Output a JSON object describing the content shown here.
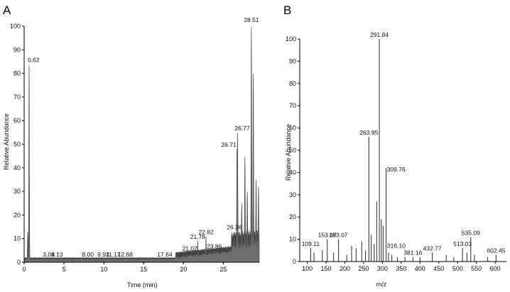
{
  "chart_data": [
    {
      "type": "line",
      "panel_label": "A",
      "xlabel": "Time (min)",
      "ylabel": "Relative Abundance",
      "xlim": [
        0,
        29.5
      ],
      "ylim": [
        0,
        100
      ],
      "x_ticks": [
        "0",
        "5",
        "10",
        "15",
        "20",
        "25"
      ],
      "y_ticks": [
        "0",
        "10",
        "20",
        "30",
        "40",
        "50",
        "60",
        "70",
        "80",
        "90",
        "100"
      ],
      "grid": false,
      "peaks": [
        {
          "label": "0.62",
          "x": 0.62,
          "y": 84
        },
        {
          "label": "3.08",
          "x": 3.08,
          "y": 1.5
        },
        {
          "label": "4.13",
          "x": 4.13,
          "y": 1.5
        },
        {
          "label": "8.00",
          "x": 8.0,
          "y": 1.5
        },
        {
          "label": "9.93",
          "x": 9.93,
          "y": 1.5
        },
        {
          "label": "11.17",
          "x": 11.17,
          "y": 1.5
        },
        {
          "label": "12.68",
          "x": 12.68,
          "y": 1.5
        },
        {
          "label": "17.64",
          "x": 17.64,
          "y": 1.5
        },
        {
          "label": "21.02",
          "x": 21.02,
          "y": 4
        },
        {
          "label": "21.78",
          "x": 21.78,
          "y": 9
        },
        {
          "label": "22.82",
          "x": 22.82,
          "y": 11
        },
        {
          "label": "23.86",
          "x": 23.86,
          "y": 5
        },
        {
          "label": "26.36",
          "x": 26.36,
          "y": 13
        },
        {
          "label": "26.71",
          "x": 26.71,
          "y": 48
        },
        {
          "label": "26.77",
          "x": 26.77,
          "y": 55
        },
        {
          "label": "28.51",
          "x": 28.51,
          "y": 100
        }
      ],
      "unlabeled_peaks": [
        {
          "x": 0.45,
          "y": 13
        },
        {
          "x": 27.3,
          "y": 25
        },
        {
          "x": 27.7,
          "y": 45
        },
        {
          "x": 28.0,
          "y": 30
        },
        {
          "x": 28.75,
          "y": 80
        },
        {
          "x": 29.1,
          "y": 35
        },
        {
          "x": 29.4,
          "y": 32
        }
      ]
    },
    {
      "type": "bar",
      "panel_label": "B",
      "xlabel": "m/z",
      "ylabel": "Relative Abundance",
      "xlim": [
        80,
        630
      ],
      "ylim": [
        0,
        100
      ],
      "x_ticks": [
        "100",
        "150",
        "200",
        "250",
        "300",
        "350",
        "400",
        "450",
        "500",
        "550",
        "600"
      ],
      "y_ticks": [
        "0",
        "10",
        "20",
        "30",
        "40",
        "50",
        "60",
        "70",
        "80",
        "90",
        "100"
      ],
      "grid": false,
      "peaks": [
        {
          "label": "109.11",
          "x": 109.11,
          "y": 6
        },
        {
          "label": "153.07",
          "x": 153.07,
          "y": 10
        },
        {
          "label": "183.07",
          "x": 183.07,
          "y": 10
        },
        {
          "label": "263.95",
          "x": 263.95,
          "y": 56
        },
        {
          "label": "291.84",
          "x": 291.84,
          "y": 100
        },
        {
          "label": "309.76",
          "x": 309.76,
          "y": 42
        },
        {
          "label": "316.10",
          "x": 316.1,
          "y": 4
        },
        {
          "label": "381.16",
          "x": 381.16,
          "y": 2
        },
        {
          "label": "432.77",
          "x": 432.77,
          "y": 4
        },
        {
          "label": "513.03",
          "x": 513.03,
          "y": 6
        },
        {
          "label": "535.09",
          "x": 535.09,
          "y": 11
        },
        {
          "label": "602.45",
          "x": 602.45,
          "y": 3
        }
      ],
      "unlabeled_peaks": [
        {
          "x": 118,
          "y": 4
        },
        {
          "x": 140,
          "y": 5
        },
        {
          "x": 170,
          "y": 4
        },
        {
          "x": 205,
          "y": 3
        },
        {
          "x": 218,
          "y": 7
        },
        {
          "x": 230,
          "y": 6
        },
        {
          "x": 245,
          "y": 9
        },
        {
          "x": 255,
          "y": 5
        },
        {
          "x": 270,
          "y": 12
        },
        {
          "x": 278,
          "y": 8
        },
        {
          "x": 285,
          "y": 27
        },
        {
          "x": 297,
          "y": 19
        },
        {
          "x": 302,
          "y": 16
        },
        {
          "x": 325,
          "y": 3
        },
        {
          "x": 340,
          "y": 2
        },
        {
          "x": 360,
          "y": 2
        },
        {
          "x": 400,
          "y": 2
        },
        {
          "x": 470,
          "y": 3
        },
        {
          "x": 490,
          "y": 2
        },
        {
          "x": 525,
          "y": 4
        },
        {
          "x": 545,
          "y": 3
        },
        {
          "x": 580,
          "y": 2
        }
      ]
    }
  ]
}
